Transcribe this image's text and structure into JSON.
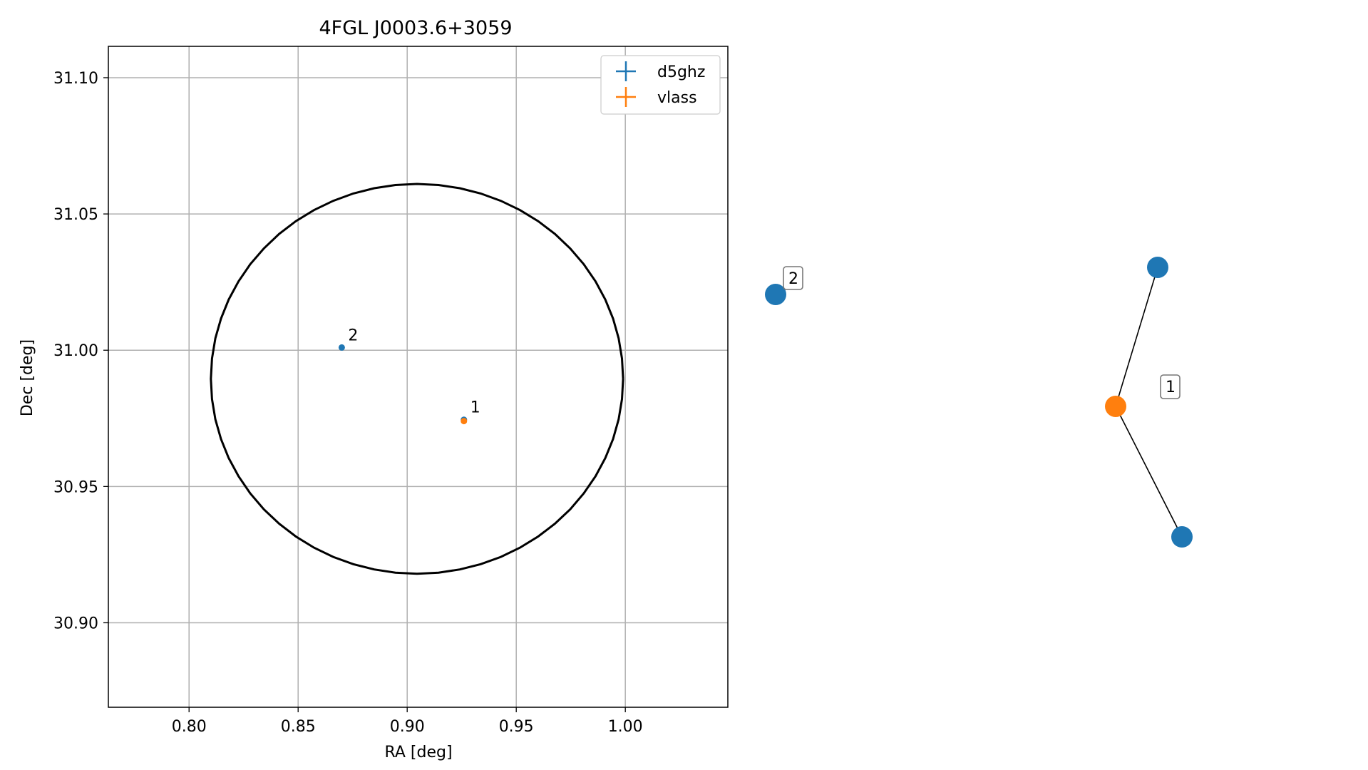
{
  "chart_data": [
    {
      "type": "scatter",
      "title": "4FGL J0003.6+3059",
      "xlabel": "RA [deg]",
      "ylabel": "Dec [deg]",
      "xlim": [
        0.763,
        1.047
      ],
      "ylim": [
        30.869,
        31.1115
      ],
      "x_ticks": [
        0.8,
        0.85,
        0.9,
        0.95,
        1.0
      ],
      "x_tick_labels": [
        "0.80",
        "0.85",
        "0.90",
        "0.95",
        "1.00"
      ],
      "y_ticks": [
        30.9,
        30.95,
        31.0,
        31.05,
        31.1
      ],
      "y_tick_labels": [
        "30.90",
        "30.95",
        "31.00",
        "31.05",
        "31.10"
      ],
      "grid": true,
      "legend_position": "top-right",
      "series": [
        {
          "name": "d5ghz",
          "color": "#1f77b4",
          "points": [
            {
              "x": 0.87,
              "y": 31.001,
              "label": "2"
            },
            {
              "x": 0.926,
              "y": 30.9745,
              "label": "1"
            }
          ]
        },
        {
          "name": "vlass",
          "color": "#ff7f0e",
          "points": [
            {
              "x": 0.926,
              "y": 30.974,
              "label": "1"
            }
          ]
        }
      ],
      "ellipse": {
        "center_ra": 0.9045,
        "center_dec": 30.9895,
        "semi_ra": 0.0945,
        "semi_dec": 0.0715,
        "color": "#000000"
      }
    },
    {
      "type": "network",
      "nodes": [
        {
          "id": "d5ghz-2",
          "color": "#1f77b4",
          "label": "2"
        },
        {
          "id": "vlass-1",
          "color": "#ff7f0e"
        },
        {
          "id": "d5ghz-a",
          "color": "#1f77b4"
        },
        {
          "id": "d5ghz-b",
          "color": "#1f77b4"
        }
      ],
      "edges": [
        [
          "vlass-1",
          "d5ghz-a"
        ],
        [
          "vlass-1",
          "d5ghz-b"
        ]
      ],
      "group_labels": [
        "1"
      ]
    }
  ]
}
